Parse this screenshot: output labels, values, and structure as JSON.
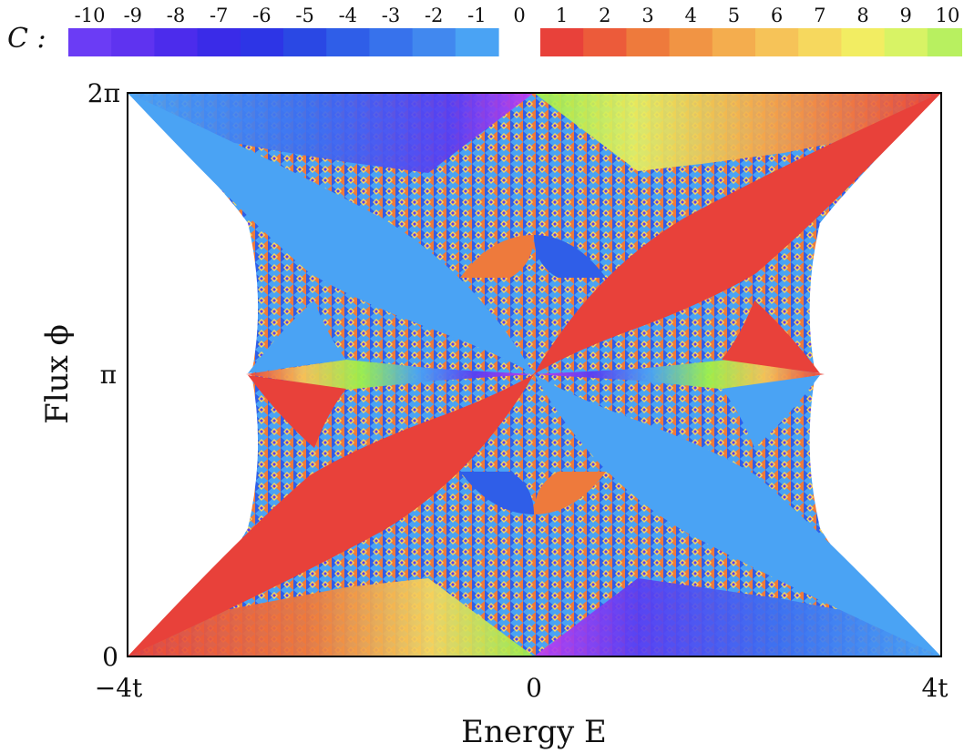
{
  "chart_data": {
    "type": "heatmap",
    "title": "",
    "xlabel": "Energy E",
    "ylabel": "Flux ϕ",
    "xlim": [
      -4,
      4
    ],
    "ylim": [
      0,
      6.2832
    ],
    "x_ticks": [
      {
        "value": -4,
        "label": "−4t"
      },
      {
        "value": 0,
        "label": "0"
      },
      {
        "value": 4,
        "label": "4t"
      }
    ],
    "y_ticks": [
      {
        "value": 0,
        "label": "0"
      },
      {
        "value": 3.1416,
        "label": "π"
      },
      {
        "value": 6.2832,
        "label": "2π"
      }
    ],
    "grid": false,
    "legend": {
      "title": "C :",
      "placement": "top",
      "entries": [
        {
          "value": -10,
          "label": "-10",
          "color": "#6b3cf5"
        },
        {
          "value": -9,
          "label": "-9",
          "color": "#5f33f0"
        },
        {
          "value": -8,
          "label": "-8",
          "color": "#4c2cec"
        },
        {
          "value": -7,
          "label": "-7",
          "color": "#3a2be8"
        },
        {
          "value": -6,
          "label": "-6",
          "color": "#2d35e6"
        },
        {
          "value": -5,
          "label": "-5",
          "color": "#2a48e4"
        },
        {
          "value": -4,
          "label": "-4",
          "color": "#2f5ee8"
        },
        {
          "value": -3,
          "label": "-3",
          "color": "#3772ec"
        },
        {
          "value": -2,
          "label": "-2",
          "color": "#4188ef"
        },
        {
          "value": -1,
          "label": "-1",
          "color": "#4aa3f4"
        },
        {
          "value": 0,
          "label": "0",
          "color": "#ffffff"
        },
        {
          "value": 1,
          "label": "1",
          "color": "#e8413a"
        },
        {
          "value": 2,
          "label": "2",
          "color": "#ec5b3a"
        },
        {
          "value": 3,
          "label": "3",
          "color": "#ee7a3c"
        },
        {
          "value": 4,
          "label": "4",
          "color": "#f19444"
        },
        {
          "value": 5,
          "label": "5",
          "color": "#f4ad4e"
        },
        {
          "value": 6,
          "label": "6",
          "color": "#f6c358"
        },
        {
          "value": 7,
          "label": "7",
          "color": "#f6d85e"
        },
        {
          "value": 8,
          "label": "8",
          "color": "#f2ed62"
        },
        {
          "value": 9,
          "label": "9",
          "color": "#d8f365"
        },
        {
          "value": 10,
          "label": "10",
          "color": "#b8f060"
        }
      ]
    },
    "colors": {
      "negative_main": "#4aa3f4",
      "positive_main": "#e8413a",
      "edge_negative": "#c43cf0",
      "edge_positive": "#9ef04a",
      "background": "#ffffff",
      "frame": "#000000"
    }
  }
}
